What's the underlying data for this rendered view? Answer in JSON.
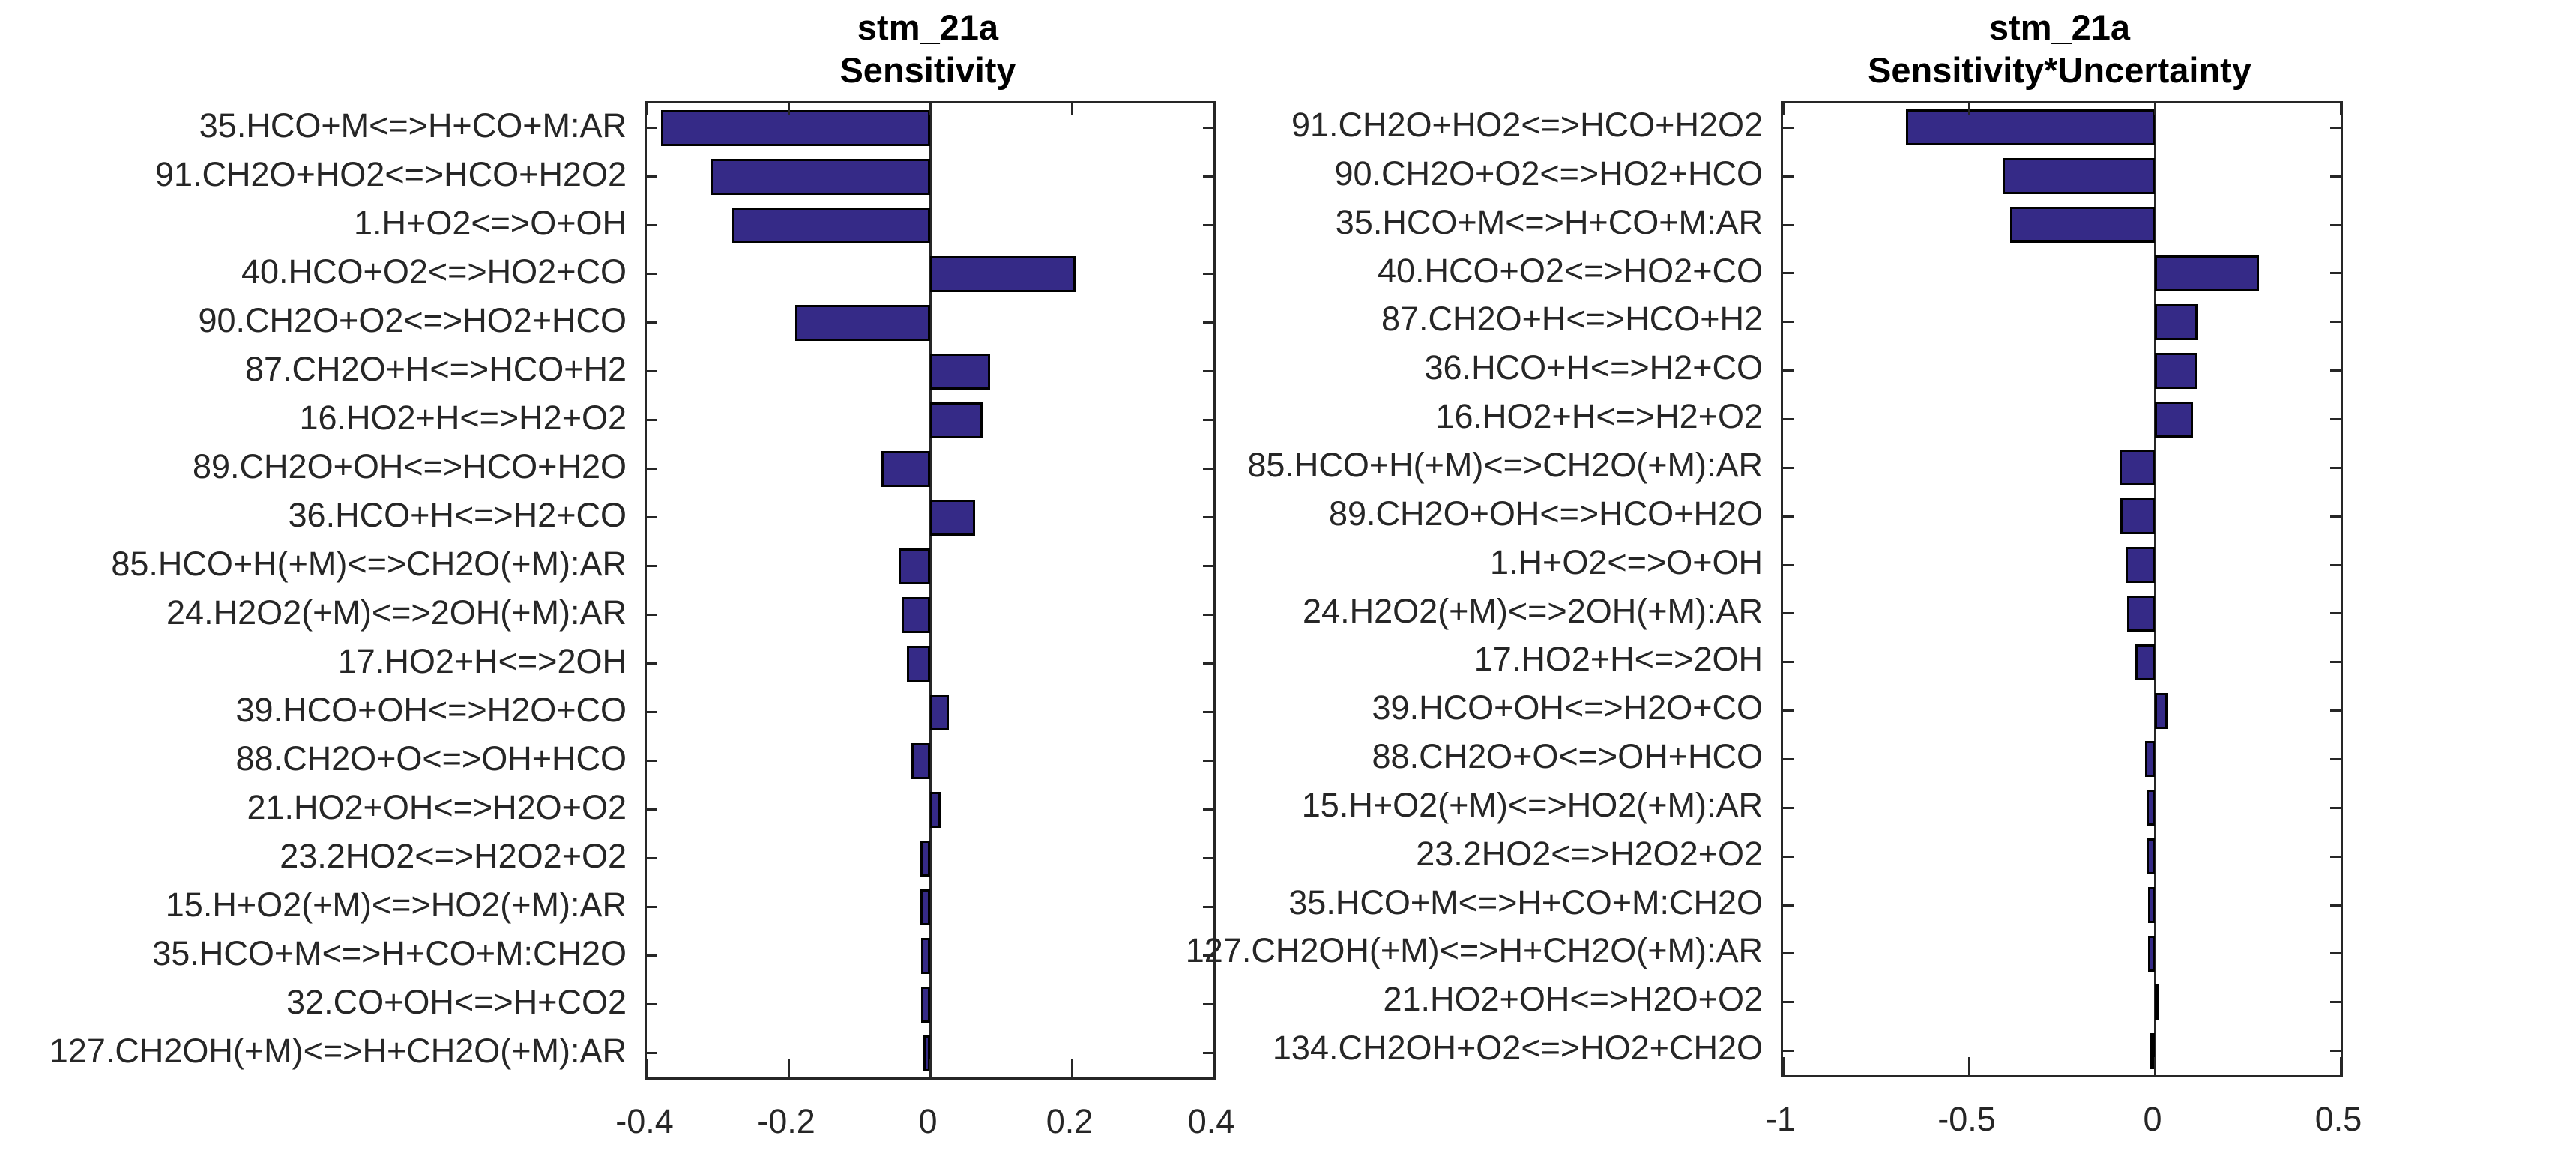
{
  "page": {
    "background": "#ffffff"
  },
  "chart_data": [
    {
      "type": "bar",
      "orientation": "horizontal",
      "title_lines": [
        "stm_21a",
        "Sensitivity"
      ],
      "categories": [
        "35.HCO+M<=>H+CO+M:AR",
        "91.CH2O+HO2<=>HCO+H2O2",
        "1.H+O2<=>O+OH",
        "40.HCO+O2<=>HO2+CO",
        "90.CH2O+O2<=>HO2+HCO",
        "87.CH2O+H<=>HCO+H2",
        "16.HO2+H<=>H2+O2",
        "89.CH2O+OH<=>HCO+H2O",
        "36.HCO+H<=>H2+CO",
        "85.HCO+H(+M)<=>CH2O(+M):AR",
        "24.H2O2(+M)<=>2OH(+M):AR",
        "17.HO2+H<=>2OH",
        "39.HCO+OH<=>H2O+CO",
        "88.CH2O+O<=>OH+HCO",
        "21.HO2+OH<=>H2O+O2",
        "23.2HO2<=>H2O2+O2",
        "15.H+O2(+M)<=>HO2(+M):AR",
        "35.HCO+M<=>H+CO+M:CH2O",
        "32.CO+OH<=>H+CO2",
        "127.CH2OH(+M)<=>H+CH2O(+M):AR"
      ],
      "values": [
        -0.38,
        -0.31,
        -0.28,
        0.205,
        -0.19,
        0.085,
        0.074,
        -0.069,
        0.063,
        -0.044,
        -0.04,
        -0.033,
        0.026,
        -0.026,
        0.015,
        -0.014,
        -0.014,
        -0.013,
        -0.013,
        -0.01
      ],
      "xlim": [
        -0.4,
        0.4
      ],
      "xticks": [
        -0.4,
        -0.2,
        0,
        0.2,
        0.4
      ],
      "xtick_labels": [
        "-0.4",
        "-0.2",
        "0",
        "0.2",
        "0.4"
      ],
      "ylabel": "",
      "xlabel": "",
      "grid": false,
      "zero_line": true,
      "legend": null,
      "bar_color": "#352A87",
      "bar_edge_color": "#000000",
      "axis_color": "#262626",
      "text_color": "#262626"
    },
    {
      "type": "bar",
      "orientation": "horizontal",
      "title_lines": [
        "stm_21a",
        "Sensitivity*Uncertainty"
      ],
      "categories": [
        "91.CH2O+HO2<=>HCO+H2O2",
        "90.CH2O+O2<=>HO2+HCO",
        "35.HCO+M<=>H+CO+M:AR",
        "40.HCO+O2<=>HO2+CO",
        "87.CH2O+H<=>HCO+H2",
        "36.HCO+H<=>H2+CO",
        "16.HO2+H<=>H2+O2",
        "85.HCO+H(+M)<=>CH2O(+M):AR",
        "89.CH2O+OH<=>HCO+H2O",
        "1.H+O2<=>O+OH",
        "24.H2O2(+M)<=>2OH(+M):AR",
        "17.HO2+H<=>2OH",
        "39.HCO+OH<=>H2O+CO",
        "88.CH2O+O<=>OH+HCO",
        "15.H+O2(+M)<=>HO2(+M):AR",
        "23.2HO2<=>H2O2+O2",
        "35.HCO+M<=>H+CO+M:CH2O",
        "127.CH2OH(+M)<=>H+CH2O(+M):AR",
        "21.HO2+OH<=>H2O+O2",
        "134.CH2OH+O2<=>HO2+CH2O"
      ],
      "values": [
        -0.67,
        -0.41,
        -0.39,
        0.28,
        0.115,
        0.112,
        0.102,
        -0.095,
        -0.092,
        -0.078,
        -0.075,
        -0.053,
        0.034,
        -0.027,
        -0.022,
        -0.022,
        -0.018,
        -0.018,
        0.012,
        -0.013
      ],
      "xlim": [
        -1,
        0.5
      ],
      "xticks": [
        -1,
        -0.5,
        0,
        0.5
      ],
      "xtick_labels": [
        "-1",
        "-0.5",
        "0",
        "0.5"
      ],
      "ylabel": "",
      "xlabel": "",
      "grid": false,
      "zero_line": true,
      "legend": null,
      "bar_color": "#352A87",
      "bar_edge_color": "#000000",
      "axis_color": "#262626",
      "text_color": "#262626"
    }
  ]
}
